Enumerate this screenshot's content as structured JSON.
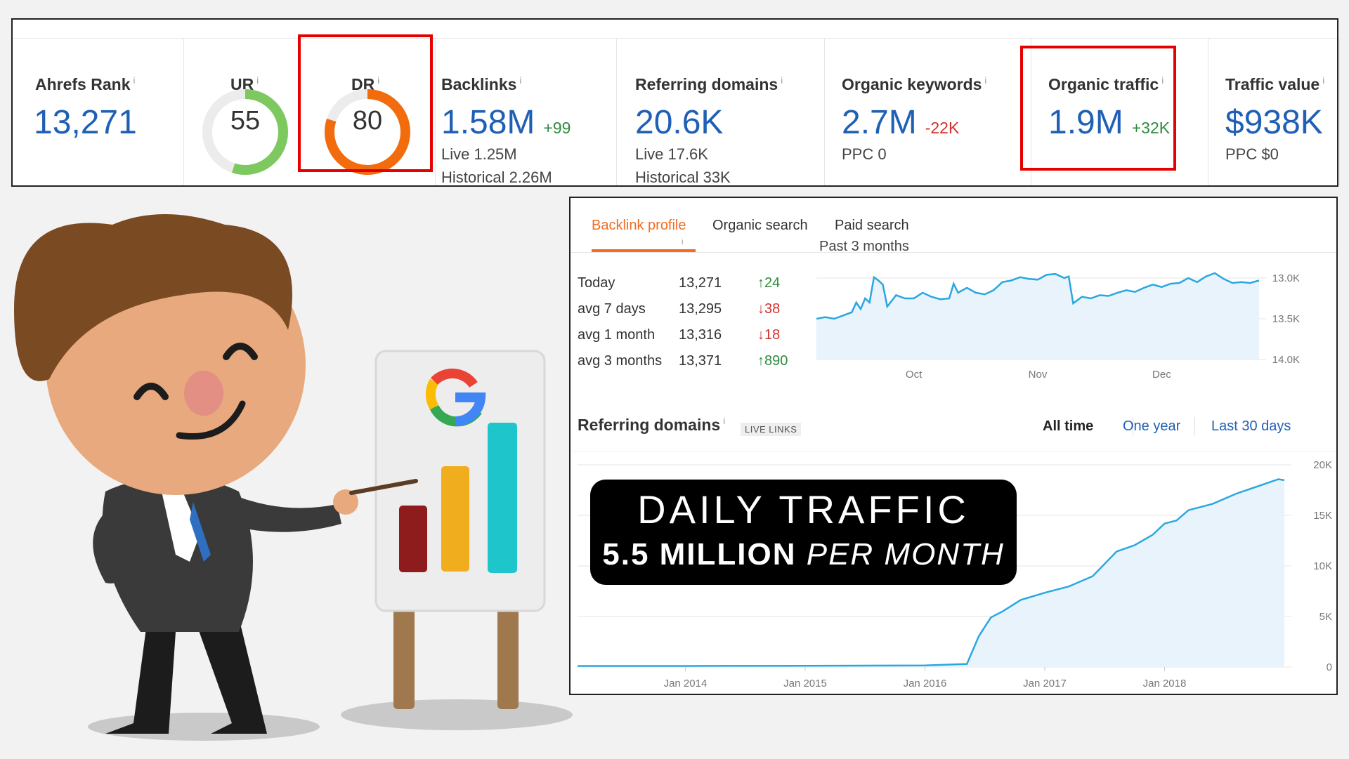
{
  "metrics": {
    "ahrefs_rank": {
      "label": "Ahrefs Rank",
      "info": "i",
      "value": "13,271"
    },
    "ur": {
      "label": "UR",
      "info": "i",
      "value": "55",
      "score": 55,
      "color": "#7ec95f"
    },
    "dr": {
      "label": "DR",
      "info": "i",
      "value": "80",
      "score": 80,
      "color": "#f26c0d"
    },
    "backlinks": {
      "label": "Backlinks",
      "info": "i",
      "value": "1.58M",
      "delta": "+99",
      "live": "Live 1.25M",
      "historical": "Historical 2.26M"
    },
    "referring_domains": {
      "label": "Referring domains",
      "info": "i",
      "value": "20.6K",
      "live": "Live 17.6K",
      "historical": "Historical 33K"
    },
    "organic_keywords": {
      "label": "Organic keywords",
      "info": "i",
      "value": "2.7M",
      "delta": "-22K",
      "ppc": "PPC 0"
    },
    "organic_traffic": {
      "label": "Organic traffic",
      "info": "i",
      "value": "1.9M",
      "delta": "+32K"
    },
    "traffic_value": {
      "label": "Traffic value",
      "info": "i",
      "value": "$938K",
      "ppc": "PPC $0"
    }
  },
  "tabs": [
    {
      "label": "Backlink profile",
      "active": true
    },
    {
      "label": "Organic search",
      "active": false
    },
    {
      "label": "Paid search",
      "active": false
    }
  ],
  "tab_info": "i",
  "period_label": "Past 3 months",
  "rank_table": [
    {
      "label": "Today",
      "value": "13,271",
      "change": "↑24",
      "dir": "up"
    },
    {
      "label": "avg 7 days",
      "value": "13,295",
      "change": "↓38",
      "dir": "down"
    },
    {
      "label": "avg 1 month",
      "value": "13,316",
      "change": "↓18",
      "dir": "down"
    },
    {
      "label": "avg 3 months",
      "value": "13,371",
      "change": "↑890",
      "dir": "up"
    }
  ],
  "referring_domains_section": {
    "title": "Referring domains",
    "info": "i",
    "badge": "LIVE LINKS",
    "ranges": [
      {
        "label": "All time",
        "active": true
      },
      {
        "label": "One year",
        "active": false
      },
      {
        "label": "Last 30 days",
        "active": false
      }
    ]
  },
  "banner": {
    "title": "DAILY TRAFFIC",
    "sub_bold": "5.5 MILLION",
    "sub_italic": "PER MONTH"
  },
  "chart_data": [
    {
      "type": "area",
      "x_ticks": [
        "Oct",
        "Nov",
        "Dec"
      ],
      "y_ticks": [
        "13.0K",
        "13.5K",
        "14.0K"
      ],
      "y_inverted": true,
      "ylim": [
        13000,
        14000
      ],
      "x": [
        0,
        2,
        4,
        6,
        8,
        9,
        10,
        11,
        12,
        13,
        14,
        15,
        16,
        18,
        20,
        22,
        24,
        26,
        28,
        30,
        31,
        32,
        34,
        36,
        38,
        40,
        42,
        44,
        46,
        48,
        50,
        52,
        54,
        56,
        57,
        58,
        60,
        62,
        64,
        66,
        68,
        70,
        72,
        74,
        76,
        78,
        80,
        82,
        84,
        86,
        88,
        90,
        92,
        94,
        96,
        98,
        100
      ],
      "values": [
        13500,
        13480,
        13500,
        13460,
        13420,
        13300,
        13380,
        13250,
        13300,
        12990,
        13030,
        13080,
        13350,
        13210,
        13250,
        13250,
        13180,
        13230,
        13260,
        13250,
        13070,
        13180,
        13120,
        13180,
        13200,
        13150,
        13050,
        13030,
        12990,
        13010,
        13020,
        12960,
        12950,
        13000,
        12980,
        13310,
        13230,
        13250,
        13210,
        13220,
        13180,
        13150,
        13170,
        13120,
        13080,
        13110,
        13070,
        13060,
        13000,
        13050,
        12980,
        12940,
        13010,
        13060,
        13050,
        13060,
        13030
      ]
    },
    {
      "type": "area",
      "x_ticks": [
        "Jan 2014",
        "Jan 2015",
        "Jan 2016",
        "Jan 2017",
        "Jan 2018"
      ],
      "y_ticks": [
        "20K",
        "15K",
        "10K",
        "5K",
        "0"
      ],
      "ylim": [
        0,
        20000
      ],
      "x": [
        2013.1,
        2014,
        2015,
        2016,
        2016.35,
        2016.45,
        2016.55,
        2016.65,
        2016.8,
        2017,
        2017.2,
        2017.4,
        2017.6,
        2017.75,
        2017.9,
        2018.0,
        2018.1,
        2018.2,
        2018.4,
        2018.6,
        2018.8,
        2018.95,
        2019.0
      ],
      "values": [
        100,
        100,
        120,
        150,
        300,
        3000,
        4800,
        5400,
        6500,
        7200,
        7800,
        8800,
        11200,
        11800,
        12800,
        13900,
        14200,
        15200,
        15800,
        16800,
        17600,
        18200,
        18100
      ]
    }
  ]
}
